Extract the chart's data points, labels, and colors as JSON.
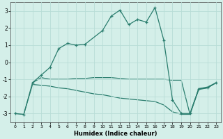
{
  "xlabel": "Humidex (Indice chaleur)",
  "bg_color": "#d4efe9",
  "grid_color": "#b8ddd6",
  "line_color": "#2a7d6e",
  "xlim": [
    -0.5,
    23.5
  ],
  "ylim": [
    -3.5,
    3.5
  ],
  "xticks": [
    0,
    1,
    2,
    3,
    4,
    5,
    6,
    7,
    8,
    9,
    10,
    11,
    12,
    13,
    14,
    15,
    16,
    17,
    18,
    19,
    20,
    21,
    22,
    23
  ],
  "yticks": [
    -3,
    -2,
    -1,
    0,
    1,
    2,
    3
  ],
  "curve_main_x": [
    0,
    1,
    2,
    3,
    4,
    5,
    6,
    7,
    8,
    10,
    11,
    12,
    13,
    14,
    15,
    16,
    17,
    18,
    19,
    20,
    21,
    22,
    23
  ],
  "curve_main_y": [
    -3.0,
    -3.05,
    -1.2,
    -0.75,
    -0.3,
    0.8,
    1.1,
    1.0,
    1.05,
    1.85,
    2.7,
    3.05,
    2.2,
    2.5,
    2.35,
    3.2,
    1.3,
    -2.2,
    -3.0,
    -3.0,
    -1.55,
    -1.5,
    -1.2
  ],
  "curve_flat_x": [
    2,
    3,
    4,
    5,
    6,
    7,
    8,
    9,
    10,
    11,
    12,
    13,
    14,
    15,
    16,
    17,
    18,
    19,
    20,
    21,
    22,
    23
  ],
  "curve_flat_y": [
    -1.2,
    -0.9,
    -1.0,
    -1.0,
    -1.0,
    -0.95,
    -0.95,
    -0.9,
    -0.9,
    -0.9,
    -0.95,
    -1.0,
    -1.0,
    -1.0,
    -1.0,
    -1.0,
    -1.05,
    -1.05,
    -3.05,
    -1.55,
    -1.45,
    -1.2
  ],
  "curve_slope_x": [
    0,
    1,
    2,
    3,
    4,
    5,
    6,
    7,
    8,
    9,
    10,
    11,
    12,
    13,
    14,
    15,
    16,
    17,
    18,
    19,
    20,
    21,
    22,
    23
  ],
  "curve_slope_y": [
    -3.0,
    -3.05,
    -1.3,
    -1.35,
    -1.4,
    -1.5,
    -1.55,
    -1.65,
    -1.75,
    -1.85,
    -1.9,
    -2.0,
    -2.1,
    -2.15,
    -2.2,
    -2.25,
    -2.3,
    -2.5,
    -2.9,
    -3.05,
    -3.05,
    -1.6,
    -1.5,
    -1.2
  ]
}
